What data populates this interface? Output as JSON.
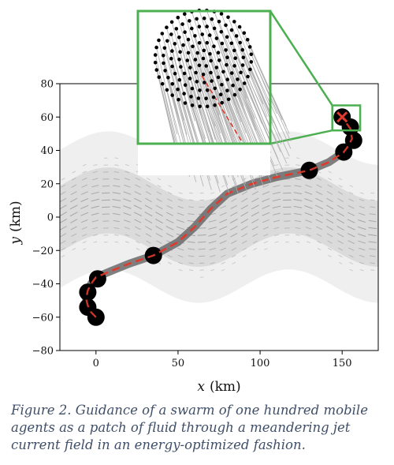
{
  "chart_data": {
    "type": "line",
    "xlabel_var": "x",
    "xlabel_unit": "(km)",
    "ylabel_var": "y",
    "ylabel_unit": "(km)",
    "xlim": [
      -22,
      172
    ],
    "ylim": [
      -80,
      80
    ],
    "xticks": [
      "0",
      "50",
      "100",
      "150"
    ],
    "xtick_values": [
      0,
      50,
      100,
      150
    ],
    "yticks": [
      "80",
      "60",
      "40",
      "20",
      "0",
      "−20",
      "−40",
      "−60",
      "−80"
    ],
    "ytick_values": [
      80,
      60,
      40,
      20,
      0,
      -20,
      -40,
      -60,
      -80
    ],
    "trajectory": [
      [
        0,
        -60
      ],
      [
        -3,
        -57
      ],
      [
        -5,
        -53
      ],
      [
        -6,
        -49
      ],
      [
        -5,
        -44
      ],
      [
        -3,
        -40
      ],
      [
        0,
        -36
      ],
      [
        10,
        -32
      ],
      [
        20,
        -28
      ],
      [
        35,
        -23
      ],
      [
        50,
        -15
      ],
      [
        60,
        -6
      ],
      [
        70,
        5
      ],
      [
        80,
        14
      ],
      [
        95,
        20
      ],
      [
        110,
        24
      ],
      [
        130,
        28
      ],
      [
        142,
        33
      ],
      [
        151,
        39
      ],
      [
        154,
        43
      ],
      [
        156,
        47
      ],
      [
        155,
        53
      ],
      [
        150,
        60
      ]
    ],
    "markers": [
      [
        0,
        -60
      ],
      [
        -5,
        -54
      ],
      [
        -5,
        -45
      ],
      [
        1,
        -37
      ],
      [
        35,
        -23
      ],
      [
        130,
        28
      ],
      [
        151,
        39
      ],
      [
        157,
        46
      ],
      [
        155,
        54
      ],
      [
        150,
        60
      ]
    ],
    "target": [
      150,
      60
    ],
    "jet_field": {
      "description_values": "meandering jet current, gray arrows",
      "amplitude": 10,
      "wavelength": 110,
      "half_width": 18
    },
    "inset_zoom": {
      "x": [
        144,
        161
      ],
      "y": [
        52,
        67
      ]
    },
    "colors": {
      "path_gray": "#6a6a6a",
      "path_red": "#e03b2e",
      "marker": "#000000",
      "inset_border": "#4caf50",
      "target_x": "#e03b2e",
      "field_arrow": "#9a9a9a",
      "tether": "#b0b0b0"
    }
  },
  "caption": "Figure 2. Guidance of a swarm of one hundred mobile agents as a patch of fluid through a meandering jet current field in an energy-optimized fashion."
}
